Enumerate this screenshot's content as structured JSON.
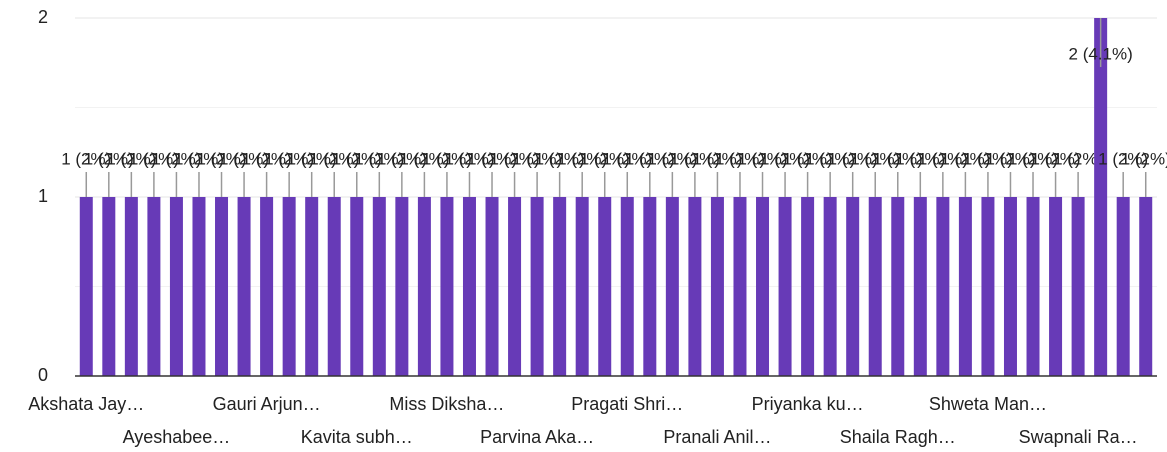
{
  "chart_data": {
    "type": "bar",
    "categories": [
      "Akshata Jay…",
      null,
      null,
      null,
      "Ayeshabee…",
      null,
      null,
      null,
      "Gauri Arjun…",
      null,
      null,
      null,
      "Kavita subh…",
      null,
      null,
      null,
      "Miss Diksha…",
      null,
      null,
      null,
      "Parvina Aka…",
      null,
      null,
      null,
      "Pragati Shri…",
      null,
      null,
      null,
      "Pranali Anil…",
      null,
      null,
      null,
      "Priyanka ku…",
      null,
      null,
      null,
      "Shaila Ragh…",
      null,
      null,
      null,
      "Shweta Man…",
      null,
      null,
      null,
      "Swapnali Ra…",
      null,
      null,
      null
    ],
    "values": [
      1,
      1,
      1,
      1,
      1,
      1,
      1,
      1,
      1,
      1,
      1,
      1,
      1,
      1,
      1,
      1,
      1,
      1,
      1,
      1,
      1,
      1,
      1,
      1,
      1,
      1,
      1,
      1,
      1,
      1,
      1,
      1,
      1,
      1,
      1,
      1,
      1,
      1,
      1,
      1,
      1,
      1,
      1,
      1,
      1,
      2,
      1,
      1
    ],
    "value_labels": [
      "1 (2%)",
      "1 (2%)",
      "1 (2%)",
      "1 (2%)",
      "1 (2%)",
      "1 (2%)",
      "1 (2%)",
      "1 (2%)",
      "1 (2%)",
      "1 (2%)",
      "1 (2%)",
      "1 (2%)",
      "1 (2%)",
      "1 (2%)",
      "1 (2%)",
      "1 (2%)",
      "1 (2%)",
      "1 (2%)",
      "1 (2%)",
      "1 (2%)",
      "1 (2%)",
      "1 (2%)",
      "1 (2%)",
      "1 (2%)",
      "1 (2%)",
      "1 (2%)",
      "1 (2%)",
      "1 (2%)",
      "1 (2%)",
      "1 (2%)",
      "1 (2%)",
      "1 (2%)",
      "1 (2%)",
      "1 (2%)",
      "1 (2%)",
      "1 (2%)",
      "1 (2%)",
      "1 (2%)",
      "1 (2%)",
      "1 (2%)",
      "1 (2%)",
      "1 (2%)",
      "1 (2%)",
      "1 (2%)",
      "1 (2%)",
      "2 (4.1%)",
      "1 (2%)",
      "1 (2%)"
    ],
    "color": "#673ab7",
    "ylim": [
      0,
      2
    ],
    "yticks": [
      0,
      1,
      2
    ],
    "grid": true
  }
}
